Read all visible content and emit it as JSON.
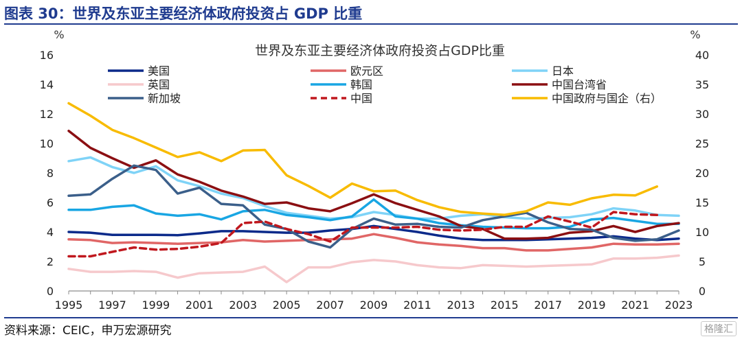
{
  "header": {
    "figure_title": "图表 30：世界及东亚主要经济体政府投资占 GDP 比重",
    "source": "资料来源：CEIC，申万宏源研究",
    "watermark": "格隆汇"
  },
  "chart_data": {
    "type": "line",
    "title": "世界及东亚主要经济体政府投资占GDP比重",
    "y_left_unit": "%",
    "y_right_unit": "%",
    "y_left_range": [
      0,
      16
    ],
    "y_right_range": [
      0,
      40
    ],
    "y_left_ticks": [
      "0",
      "2",
      "4",
      "6",
      "8",
      "10",
      "12",
      "14",
      "16"
    ],
    "y_right_ticks": [
      "0",
      "5",
      "10",
      "15",
      "20",
      "25",
      "30",
      "35",
      "40"
    ],
    "x_range": [
      1995,
      2023
    ],
    "x_ticks": [
      "1995",
      "1997",
      "1999",
      "2001",
      "2003",
      "2005",
      "2007",
      "2009",
      "2011",
      "2013",
      "2015",
      "2017",
      "2019",
      "2021",
      "2023"
    ],
    "x_start": 1995,
    "legend_position": "top",
    "series": [
      {
        "name": "美国",
        "axis": "left",
        "color": "#0b2a8a",
        "dash": false,
        "values": [
          4.0,
          3.95,
          3.8,
          3.8,
          3.8,
          3.78,
          3.9,
          4.05,
          4.05,
          4.0,
          3.95,
          3.95,
          4.1,
          4.2,
          4.4,
          4.2,
          4.0,
          3.75,
          3.55,
          3.45,
          3.45,
          3.45,
          3.5,
          3.55,
          3.6,
          3.7,
          3.55,
          3.45,
          3.55
        ]
      },
      {
        "name": "欧元区",
        "axis": "left",
        "color": "#e06666",
        "dash": false,
        "values": [
          3.5,
          3.45,
          3.25,
          3.3,
          3.25,
          3.2,
          3.25,
          3.3,
          3.45,
          3.35,
          3.4,
          3.45,
          3.5,
          3.55,
          3.85,
          3.6,
          3.3,
          3.15,
          3.05,
          2.9,
          2.9,
          2.75,
          2.75,
          2.85,
          2.95,
          3.2,
          3.15,
          3.15,
          3.2
        ]
      },
      {
        "name": "日本",
        "axis": "left",
        "color": "#7fd3f7",
        "dash": false,
        "values": [
          8.8,
          9.05,
          8.4,
          8.0,
          8.45,
          7.5,
          7.1,
          6.6,
          6.3,
          5.75,
          5.3,
          5.1,
          4.9,
          5.0,
          5.35,
          5.15,
          4.9,
          4.9,
          5.1,
          5.2,
          5.0,
          4.9,
          4.95,
          5.0,
          5.2,
          5.6,
          5.45,
          5.15,
          5.1
        ]
      },
      {
        "name": "英国",
        "axis": "left",
        "color": "#f6c9cc",
        "dash": false,
        "values": [
          1.5,
          1.3,
          1.3,
          1.35,
          1.3,
          0.9,
          1.2,
          1.25,
          1.3,
          1.65,
          0.6,
          1.6,
          1.6,
          1.95,
          2.1,
          2.0,
          1.75,
          1.6,
          1.55,
          1.75,
          1.7,
          1.65,
          1.7,
          1.75,
          1.8,
          2.2,
          2.2,
          2.25,
          2.4
        ]
      },
      {
        "name": "韩国",
        "axis": "left",
        "color": "#19a6e3",
        "dash": false,
        "values": [
          5.5,
          5.5,
          5.7,
          5.8,
          5.25,
          5.1,
          5.2,
          4.85,
          5.4,
          5.5,
          5.15,
          5.0,
          4.8,
          5.05,
          6.2,
          5.05,
          4.9,
          4.6,
          4.45,
          4.35,
          4.3,
          4.25,
          4.25,
          4.35,
          4.85,
          4.95,
          4.75,
          4.55,
          4.55
        ]
      },
      {
        "name": "中国台湾省",
        "axis": "left",
        "color": "#8b0f12",
        "dash": false,
        "values": [
          10.85,
          9.7,
          9.0,
          8.35,
          8.85,
          7.9,
          7.4,
          6.8,
          6.4,
          5.9,
          6.0,
          5.6,
          5.4,
          5.95,
          6.55,
          5.95,
          5.5,
          5.05,
          4.4,
          4.2,
          3.55,
          3.55,
          3.6,
          3.95,
          4.05,
          4.4,
          4.0,
          4.4,
          4.6
        ]
      },
      {
        "name": "新加坡",
        "axis": "left",
        "color": "#3b5f8a",
        "dash": false,
        "values": [
          6.45,
          6.55,
          7.6,
          8.5,
          8.2,
          6.6,
          7.0,
          5.9,
          5.8,
          4.5,
          4.2,
          3.35,
          2.95,
          4.2,
          4.9,
          4.5,
          4.55,
          4.35,
          4.3,
          4.8,
          5.05,
          5.3,
          4.65,
          4.2,
          4.15,
          3.6,
          3.4,
          3.5,
          4.1
        ]
      },
      {
        "name": "中国",
        "axis": "left",
        "color": "#c0181e",
        "dash": true,
        "values": [
          2.35,
          2.35,
          2.65,
          2.95,
          2.8,
          2.85,
          3.0,
          3.25,
          4.6,
          4.7,
          4.2,
          3.85,
          3.35,
          4.3,
          4.3,
          4.3,
          4.35,
          4.15,
          4.1,
          4.15,
          4.35,
          4.35,
          5.05,
          4.7,
          4.3,
          5.35,
          5.2,
          5.15,
          null
        ]
      },
      {
        "name": "中国政府与国企（右）",
        "axis": "right",
        "color": "#f8bb00",
        "dash": false,
        "values": [
          31.8,
          29.7,
          27.3,
          25.9,
          24.3,
          22.7,
          23.5,
          22.0,
          23.8,
          23.9,
          19.6,
          17.8,
          15.8,
          18.2,
          16.9,
          17.0,
          15.4,
          14.2,
          13.4,
          13.1,
          12.9,
          13.5,
          15.0,
          14.6,
          15.7,
          16.3,
          16.2,
          17.7,
          null
        ]
      }
    ]
  }
}
